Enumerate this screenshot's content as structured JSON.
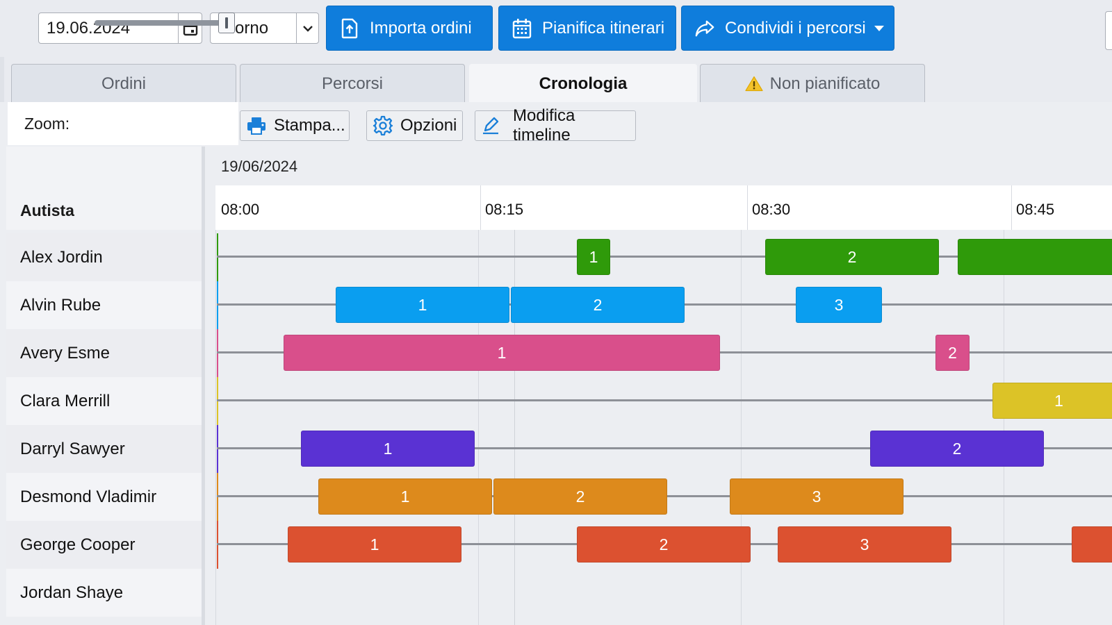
{
  "toolbar": {
    "date_value": "19.06.2024",
    "view_value": "Giorno",
    "import_label": "Importa ordini",
    "plan_label": "Pianifica itinerari",
    "share_label": "Condividi i percorsi"
  },
  "tabs": [
    {
      "label": "Ordini",
      "active": false
    },
    {
      "label": "Percorsi",
      "active": false
    },
    {
      "label": "Cronologia",
      "active": true
    },
    {
      "label": "Non pianificato",
      "active": false,
      "icon": "warning-icon"
    }
  ],
  "timeline_toolbar": {
    "zoom_label": "Zoom:",
    "zoom_level": 0.95,
    "print_label": "Stampa...",
    "options_label": "Opzioni",
    "edit_label": "Modifica timeline"
  },
  "timeline": {
    "resource_header": "Autista",
    "date_label": "19/06/2024",
    "times": [
      "08:00",
      "08:15",
      "08:30",
      "08:45"
    ],
    "drivers": [
      {
        "name": "Alex Jordin",
        "color": "#2f9a0a",
        "jobs": [
          {
            "label": "1",
            "start": "08:20:30",
            "end": "08:22:30"
          },
          {
            "label": "2",
            "start": "08:31:15",
            "end": "08:41:15"
          },
          {
            "label": "",
            "start": "08:42:15",
            "end": "08:52:00"
          }
        ]
      },
      {
        "name": "Alvin Rube",
        "color": "#0a9ef0",
        "jobs": [
          {
            "label": "1",
            "start": "08:06:45",
            "end": "08:16:45"
          },
          {
            "label": "2",
            "start": "08:16:45",
            "end": "08:26:45"
          },
          {
            "label": "3",
            "start": "08:33:00",
            "end": "08:38:00"
          }
        ]
      },
      {
        "name": "Avery Esme",
        "color": "#d94f8b",
        "jobs": [
          {
            "label": "1",
            "start": "08:03:45",
            "end": "08:28:45"
          },
          {
            "label": "2",
            "start": "08:41:00",
            "end": "08:43:00"
          }
        ]
      },
      {
        "name": "Clara Merrill",
        "color": "#dcc327",
        "jobs": [
          {
            "label": "1",
            "start": "08:44:15",
            "end": "08:52:00"
          }
        ]
      },
      {
        "name": "Darryl Sawyer",
        "color": "#5a32d3",
        "jobs": [
          {
            "label": "1",
            "start": "08:04:45",
            "end": "08:14:45"
          },
          {
            "label": "2",
            "start": "08:37:15",
            "end": "08:47:15"
          }
        ]
      },
      {
        "name": "Desmond Vladimir",
        "color": "#dd8a1c",
        "jobs": [
          {
            "label": "1",
            "start": "08:05:45",
            "end": "08:15:45"
          },
          {
            "label": "2",
            "start": "08:15:45",
            "end": "08:25:45"
          },
          {
            "label": "3",
            "start": "08:29:15",
            "end": "08:39:15"
          }
        ]
      },
      {
        "name": "George Cooper",
        "color": "#dc5130",
        "jobs": [
          {
            "label": "1",
            "start": "08:04:00",
            "end": "08:14:00"
          },
          {
            "label": "2",
            "start": "08:20:30",
            "end": "08:30:30"
          },
          {
            "label": "3",
            "start": "08:32:00",
            "end": "08:42:00"
          },
          {
            "label": "",
            "start": "08:48:45",
            "end": "08:52:00"
          }
        ]
      },
      {
        "name": "Jordan Shaye",
        "color": "",
        "jobs": []
      }
    ]
  }
}
